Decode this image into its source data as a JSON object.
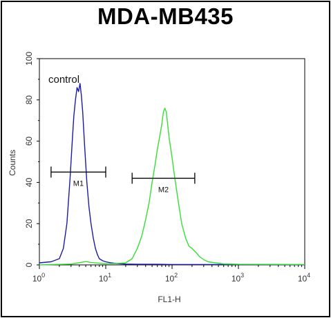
{
  "chart_data": {
    "type": "line",
    "title": "MDA-MB435",
    "xlabel": "FL1-H",
    "ylabel": "Counts",
    "xscale": "log",
    "xlim": [
      1,
      10000
    ],
    "ylim": [
      0,
      100
    ],
    "x_ticks": [
      1,
      10,
      100,
      1000,
      10000
    ],
    "x_tick_labels": [
      {
        "base": "10",
        "exp": "0"
      },
      {
        "base": "10",
        "exp": "1"
      },
      {
        "base": "10",
        "exp": "2"
      },
      {
        "base": "10",
        "exp": "3"
      },
      {
        "base": "10",
        "exp": "4"
      }
    ],
    "y_ticks": [
      0,
      20,
      40,
      60,
      80,
      100
    ],
    "annotation": "control",
    "colors": {
      "control": "#1a1aa8",
      "sample": "#33e033"
    },
    "series": [
      {
        "key": "control",
        "points": [
          [
            1.0,
            1
          ],
          [
            1.5,
            1.5
          ],
          [
            2.0,
            3
          ],
          [
            2.3,
            8
          ],
          [
            2.6,
            20
          ],
          [
            2.9,
            42
          ],
          [
            3.1,
            58
          ],
          [
            3.3,
            72
          ],
          [
            3.5,
            80
          ],
          [
            3.7,
            86
          ],
          [
            3.9,
            84
          ],
          [
            4.1,
            88
          ],
          [
            4.3,
            82
          ],
          [
            4.5,
            74
          ],
          [
            4.8,
            58
          ],
          [
            5.2,
            40
          ],
          [
            5.6,
            28
          ],
          [
            6.0,
            20
          ],
          [
            6.5,
            13
          ],
          [
            7.0,
            8
          ],
          [
            7.5,
            5
          ],
          [
            8.0,
            3
          ],
          [
            9.0,
            2
          ],
          [
            10,
            1.5
          ],
          [
            12,
            1.0
          ],
          [
            15,
            0.6
          ],
          [
            20,
            0.4
          ],
          [
            30,
            0.3
          ],
          [
            60,
            0.3
          ],
          [
            100,
            0.2
          ],
          [
            1000,
            0.2
          ],
          [
            10000,
            0.1
          ]
        ]
      },
      {
        "key": "sample",
        "points": [
          [
            1.0,
            0
          ],
          [
            3,
            0.4
          ],
          [
            5,
            1.6
          ],
          [
            6,
            1.2
          ],
          [
            8,
            0.8
          ],
          [
            10,
            0.6
          ],
          [
            15,
            0.7
          ],
          [
            20,
            1.0
          ],
          [
            25,
            3
          ],
          [
            30,
            8
          ],
          [
            35,
            14
          ],
          [
            40,
            22
          ],
          [
            45,
            30
          ],
          [
            50,
            40
          ],
          [
            55,
            48
          ],
          [
            60,
            56
          ],
          [
            65,
            62
          ],
          [
            70,
            68
          ],
          [
            74,
            74
          ],
          [
            78,
            76
          ],
          [
            82,
            74
          ],
          [
            86,
            68
          ],
          [
            90,
            62
          ],
          [
            100,
            52
          ],
          [
            110,
            42
          ],
          [
            125,
            30
          ],
          [
            140,
            20
          ],
          [
            160,
            13
          ],
          [
            180,
            9
          ],
          [
            200,
            8
          ],
          [
            230,
            6
          ],
          [
            260,
            4
          ],
          [
            300,
            2.5
          ],
          [
            350,
            1.5
          ],
          [
            450,
            1
          ],
          [
            600,
            0.5
          ],
          [
            1000,
            0.3
          ],
          [
            10000,
            0.2
          ]
        ]
      }
    ],
    "gates": [
      {
        "label": "M1",
        "x_range": [
          1.5,
          10
        ],
        "y": 45
      },
      {
        "label": "M2",
        "x_range": [
          25,
          220
        ],
        "y": 42
      }
    ]
  }
}
